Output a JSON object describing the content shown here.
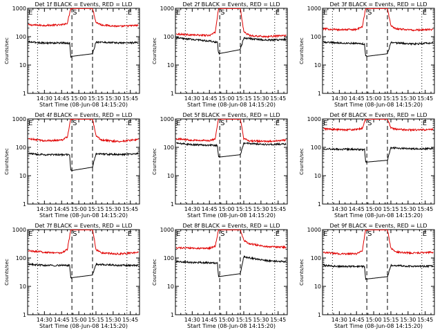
{
  "figure": {
    "background": "#ffffff",
    "axis_color": "#000000",
    "events_color": "#000000",
    "lld_color": "#e00000"
  },
  "chart_data": [
    {
      "type": "line",
      "title": "Det 1f BLACK = Events, RED = LLD",
      "xlabel": "Start Time (08-Jun-08 14:15:20)",
      "ylabel": "Counts/sec",
      "y_scale": "log",
      "ylim": [
        1,
        1000
      ],
      "y_ticks": [
        "1",
        "10",
        "100",
        "1000"
      ],
      "xlim": [
        "14:15:20",
        "15:53:00"
      ],
      "x_ticks": [
        "14:30",
        "14:45",
        "15:00",
        "15:15",
        "15:30",
        "15:45"
      ],
      "markers": [
        {
          "label": "E",
          "time": "14:15:20",
          "style": "dotted"
        },
        {
          "label": "",
          "time": "14:24:00",
          "style": "dotted"
        },
        {
          "label": "S",
          "time": "14:54:00",
          "style": "dashed"
        },
        {
          "label": "",
          "time": "15:12:00",
          "style": "dashed"
        },
        {
          "label": "E",
          "time": "15:42:00",
          "style": "dotted"
        }
      ],
      "gap": [
        "14:54:00",
        "15:12:00"
      ],
      "series": [
        {
          "name": "LLD",
          "color": "#e00000",
          "x": [
            "14:16",
            "14:30",
            "14:45",
            "14:50",
            "14:53",
            "15:12",
            "15:15",
            "15:20",
            "15:35",
            "15:52"
          ],
          "values": [
            260,
            250,
            260,
            300,
            1000,
            1000,
            320,
            260,
            230,
            250
          ]
        },
        {
          "name": "Events",
          "color": "#000000",
          "x": [
            "14:16",
            "14:30",
            "14:45",
            "14:52",
            "14:53",
            "15:12",
            "15:15",
            "15:35",
            "15:52"
          ],
          "values": [
            65,
            60,
            60,
            58,
            20,
            25,
            65,
            60,
            62
          ]
        }
      ]
    },
    {
      "type": "line",
      "title": "Det 2f BLACK = Events, RED = LLD",
      "xlabel": "Start Time (08-Jun-08 14:15:20)",
      "ylabel": "Counts/sec",
      "y_scale": "log",
      "ylim": [
        1,
        1000
      ],
      "y_ticks": [
        "1",
        "10",
        "100",
        "1000"
      ],
      "xlim": [
        "14:15:20",
        "15:53:00"
      ],
      "x_ticks": [
        "14:30",
        "14:45",
        "15:00",
        "15:15",
        "15:30",
        "15:45"
      ],
      "markers": [
        {
          "label": "E",
          "time": "14:15:20",
          "style": "dotted"
        },
        {
          "label": "",
          "time": "14:24:00",
          "style": "dotted"
        },
        {
          "label": "S",
          "time": "14:54:00",
          "style": "dashed"
        },
        {
          "label": "",
          "time": "15:12:00",
          "style": "dashed"
        },
        {
          "label": "E",
          "time": "15:42:00",
          "style": "dotted"
        }
      ],
      "gap": [
        "14:54:00",
        "15:12:00"
      ],
      "series": [
        {
          "name": "LLD",
          "color": "#e00000",
          "x": [
            "14:16",
            "14:30",
            "14:45",
            "14:50",
            "14:53",
            "15:12",
            "15:15",
            "15:20",
            "15:35",
            "15:52"
          ],
          "values": [
            125,
            115,
            110,
            140,
            1000,
            1000,
            150,
            110,
            100,
            110
          ]
        },
        {
          "name": "Events",
          "color": "#000000",
          "x": [
            "14:16",
            "14:30",
            "14:45",
            "14:52",
            "14:53",
            "15:12",
            "15:15",
            "15:35",
            "15:52"
          ],
          "values": [
            90,
            80,
            70,
            62,
            25,
            35,
            90,
            75,
            80
          ]
        }
      ]
    },
    {
      "type": "line",
      "title": "Det 3f BLACK = Events, RED = LLD",
      "xlabel": "Start Time (08-Jun-08 14:15:20)",
      "ylabel": "Counts/sec",
      "y_scale": "log",
      "ylim": [
        1,
        1000
      ],
      "y_ticks": [
        "1",
        "10",
        "100",
        "1000"
      ],
      "xlim": [
        "14:15:20",
        "15:53:00"
      ],
      "x_ticks": [
        "14:30",
        "14:45",
        "15:00",
        "15:15",
        "15:30",
        "15:45"
      ],
      "markers": [
        {
          "label": "E",
          "time": "14:15:20",
          "style": "dotted"
        },
        {
          "label": "",
          "time": "14:24:00",
          "style": "dotted"
        },
        {
          "label": "S",
          "time": "14:54:00",
          "style": "dashed"
        },
        {
          "label": "",
          "time": "15:12:00",
          "style": "dashed"
        },
        {
          "label": "E",
          "time": "15:42:00",
          "style": "dotted"
        }
      ],
      "gap": [
        "14:54:00",
        "15:12:00"
      ],
      "series": [
        {
          "name": "LLD",
          "color": "#e00000",
          "x": [
            "14:16",
            "14:30",
            "14:45",
            "14:50",
            "14:53",
            "15:12",
            "15:15",
            "15:20",
            "15:35",
            "15:52"
          ],
          "values": [
            190,
            175,
            180,
            220,
            1000,
            1000,
            240,
            190,
            170,
            180
          ]
        },
        {
          "name": "Events",
          "color": "#000000",
          "x": [
            "14:16",
            "14:30",
            "14:45",
            "14:52",
            "14:53",
            "15:12",
            "15:15",
            "15:35",
            "15:52"
          ],
          "values": [
            65,
            60,
            58,
            55,
            20,
            25,
            62,
            55,
            60
          ]
        }
      ]
    },
    {
      "type": "line",
      "title": "Det 4f BLACK = Events, RED = LLD",
      "xlabel": "Start Time (08-Jun-08 14:15:20)",
      "ylabel": "Counts/sec",
      "y_scale": "log",
      "ylim": [
        1,
        1000
      ],
      "y_ticks": [
        "1",
        "10",
        "100",
        "1000"
      ],
      "xlim": [
        "14:15:20",
        "15:53:00"
      ],
      "x_ticks": [
        "14:30",
        "14:45",
        "15:00",
        "15:15",
        "15:30",
        "15:45"
      ],
      "markers": [
        {
          "label": "E",
          "time": "14:15:20",
          "style": "dotted"
        },
        {
          "label": "",
          "time": "14:24:00",
          "style": "dotted"
        },
        {
          "label": "S",
          "time": "14:54:00",
          "style": "dashed"
        },
        {
          "label": "",
          "time": "15:12:00",
          "style": "dashed"
        },
        {
          "label": "E",
          "time": "15:42:00",
          "style": "dotted"
        }
      ],
      "gap": [
        "14:54:00",
        "15:12:00"
      ],
      "series": [
        {
          "name": "LLD",
          "color": "#e00000",
          "x": [
            "14:16",
            "14:30",
            "14:45",
            "14:50",
            "14:53",
            "15:12",
            "15:15",
            "15:20",
            "15:35",
            "15:52"
          ],
          "values": [
            200,
            170,
            180,
            230,
            1000,
            1000,
            250,
            180,
            160,
            190
          ]
        },
        {
          "name": "Events",
          "color": "#000000",
          "x": [
            "14:16",
            "14:30",
            "14:45",
            "14:52",
            "14:53",
            "15:12",
            "15:15",
            "15:35",
            "15:52"
          ],
          "values": [
            60,
            55,
            55,
            55,
            15,
            20,
            60,
            55,
            60
          ]
        }
      ]
    },
    {
      "type": "line",
      "title": "Det 5f BLACK = Events, RED = LLD",
      "xlabel": "Start Time (08-Jun-08 14:15:20)",
      "ylabel": "Counts/sec",
      "y_scale": "log",
      "ylim": [
        1,
        1000
      ],
      "y_ticks": [
        "1",
        "10",
        "100",
        "1000"
      ],
      "xlim": [
        "14:15:20",
        "15:53:00"
      ],
      "x_ticks": [
        "14:30",
        "14:45",
        "15:00",
        "15:15",
        "15:30",
        "15:45"
      ],
      "markers": [
        {
          "label": "E",
          "time": "14:15:20",
          "style": "dotted"
        },
        {
          "label": "",
          "time": "14:24:00",
          "style": "dotted"
        },
        {
          "label": "S",
          "time": "14:54:00",
          "style": "dashed"
        },
        {
          "label": "",
          "time": "15:12:00",
          "style": "dashed"
        },
        {
          "label": "E",
          "time": "15:42:00",
          "style": "dotted"
        }
      ],
      "gap": [
        "14:54:00",
        "15:12:00"
      ],
      "series": [
        {
          "name": "LLD",
          "color": "#e00000",
          "x": [
            "14:16",
            "14:30",
            "14:45",
            "14:50",
            "14:53",
            "15:12",
            "15:15",
            "15:20",
            "15:35",
            "15:52"
          ],
          "values": [
            200,
            180,
            170,
            200,
            1000,
            1000,
            200,
            170,
            160,
            180
          ]
        },
        {
          "name": "Events",
          "color": "#000000",
          "x": [
            "14:16",
            "14:30",
            "14:45",
            "14:52",
            "14:53",
            "15:12",
            "15:15",
            "15:35",
            "15:52"
          ],
          "values": [
            140,
            125,
            120,
            115,
            45,
            55,
            140,
            125,
            130
          ]
        }
      ]
    },
    {
      "type": "line",
      "title": "Det 6f BLACK = Events, RED = LLD",
      "xlabel": "Start Time (08-Jun-08 14:15:20)",
      "ylabel": "Counts/sec",
      "y_scale": "log",
      "ylim": [
        1,
        1000
      ],
      "y_ticks": [
        "1",
        "10",
        "100",
        "1000"
      ],
      "xlim": [
        "14:15:20",
        "15:53:00"
      ],
      "x_ticks": [
        "14:30",
        "14:45",
        "15:00",
        "15:15",
        "15:30",
        "15:45"
      ],
      "markers": [
        {
          "label": "E",
          "time": "14:15:20",
          "style": "dotted"
        },
        {
          "label": "",
          "time": "14:24:00",
          "style": "dotted"
        },
        {
          "label": "S",
          "time": "14:54:00",
          "style": "dashed"
        },
        {
          "label": "",
          "time": "15:12:00",
          "style": "dashed"
        },
        {
          "label": "E",
          "time": "15:42:00",
          "style": "dotted"
        }
      ],
      "gap": [
        "14:54:00",
        "15:12:00"
      ],
      "series": [
        {
          "name": "LLD",
          "color": "#e00000",
          "x": [
            "14:16",
            "14:30",
            "14:45",
            "14:50",
            "14:53",
            "15:12",
            "15:15",
            "15:20",
            "15:35",
            "15:52"
          ],
          "values": [
            450,
            420,
            420,
            470,
            1000,
            1000,
            480,
            430,
            410,
            420
          ]
        },
        {
          "name": "Events",
          "color": "#000000",
          "x": [
            "14:16",
            "14:30",
            "14:45",
            "14:52",
            "14:53",
            "15:12",
            "15:15",
            "15:35",
            "15:52"
          ],
          "values": [
            90,
            85,
            85,
            82,
            30,
            35,
            95,
            88,
            90
          ]
        }
      ]
    },
    {
      "type": "line",
      "title": "Det 7f BLACK = Events, RED = LLD",
      "xlabel": "Start Time (08-Jun-08 14:15:20)",
      "ylabel": "Counts/sec",
      "y_scale": "log",
      "ylim": [
        1,
        1000
      ],
      "y_ticks": [
        "1",
        "10",
        "100",
        "1000"
      ],
      "xlim": [
        "14:15:20",
        "15:53:00"
      ],
      "x_ticks": [
        "14:30",
        "14:45",
        "15:00",
        "15:15",
        "15:30",
        "15:45"
      ],
      "markers": [
        {
          "label": "E",
          "time": "14:15:20",
          "style": "dotted"
        },
        {
          "label": "",
          "time": "14:24:00",
          "style": "dotted"
        },
        {
          "label": "S",
          "time": "14:54:00",
          "style": "dashed"
        },
        {
          "label": "",
          "time": "15:12:00",
          "style": "dashed"
        },
        {
          "label": "E",
          "time": "15:42:00",
          "style": "dotted"
        }
      ],
      "gap": [
        "14:54:00",
        "15:12:00"
      ],
      "series": [
        {
          "name": "LLD",
          "color": "#e00000",
          "x": [
            "14:16",
            "14:30",
            "14:45",
            "14:50",
            "14:53",
            "15:12",
            "15:15",
            "15:20",
            "15:35",
            "15:52"
          ],
          "values": [
            180,
            160,
            150,
            200,
            1000,
            1000,
            200,
            150,
            140,
            155
          ]
        },
        {
          "name": "Events",
          "color": "#000000",
          "x": [
            "14:16",
            "14:30",
            "14:45",
            "14:52",
            "14:53",
            "15:12",
            "15:15",
            "15:35",
            "15:52"
          ],
          "values": [
            60,
            55,
            55,
            55,
            20,
            25,
            60,
            55,
            55
          ]
        }
      ]
    },
    {
      "type": "line",
      "title": "Det 8f BLACK = Events, RED = LLD",
      "xlabel": "Start Time (08-Jun-08 14:15:20)",
      "ylabel": "Counts/sec",
      "y_scale": "log",
      "ylim": [
        1,
        1000
      ],
      "y_ticks": [
        "1",
        "10",
        "100",
        "1000"
      ],
      "xlim": [
        "14:15:20",
        "15:53:00"
      ],
      "x_ticks": [
        "14:30",
        "14:45",
        "15:00",
        "15:15",
        "15:30",
        "15:45"
      ],
      "markers": [
        {
          "label": "E",
          "time": "14:15:20",
          "style": "dotted"
        },
        {
          "label": "",
          "time": "14:24:00",
          "style": "dotted"
        },
        {
          "label": "S",
          "time": "14:54:00",
          "style": "dashed"
        },
        {
          "label": "",
          "time": "15:12:00",
          "style": "dashed"
        },
        {
          "label": "E",
          "time": "15:42:00",
          "style": "dotted"
        }
      ],
      "gap": [
        "14:54:00",
        "15:12:00"
      ],
      "series": [
        {
          "name": "LLD",
          "color": "#e00000",
          "x": [
            "14:16",
            "14:30",
            "14:45",
            "14:50",
            "14:53",
            "15:12",
            "15:15",
            "15:20",
            "15:35",
            "15:52"
          ],
          "values": [
            230,
            220,
            220,
            260,
            1000,
            1000,
            420,
            320,
            250,
            240
          ]
        },
        {
          "name": "Events",
          "color": "#000000",
          "x": [
            "14:16",
            "14:30",
            "14:45",
            "14:52",
            "14:53",
            "15:12",
            "15:15",
            "15:35",
            "15:52"
          ],
          "values": [
            75,
            70,
            68,
            65,
            22,
            28,
            110,
            80,
            75
          ]
        }
      ]
    },
    {
      "type": "line",
      "title": "Det 9f BLACK = Events, RED = LLD",
      "xlabel": "Start Time (08-Jun-08 14:15:20)",
      "ylabel": "Counts/sec",
      "y_scale": "log",
      "ylim": [
        1,
        1000
      ],
      "y_ticks": [
        "1",
        "10",
        "100",
        "1000"
      ],
      "xlim": [
        "14:15:20",
        "15:53:00"
      ],
      "x_ticks": [
        "14:30",
        "14:45",
        "15:00",
        "15:15",
        "15:30",
        "15:45"
      ],
      "markers": [
        {
          "label": "E",
          "time": "14:15:20",
          "style": "dotted"
        },
        {
          "label": "",
          "time": "14:24:00",
          "style": "dotted"
        },
        {
          "label": "S",
          "time": "14:54:00",
          "style": "dashed"
        },
        {
          "label": "",
          "time": "15:12:00",
          "style": "dashed"
        },
        {
          "label": "E",
          "time": "15:42:00",
          "style": "dotted"
        }
      ],
      "gap": [
        "14:54:00",
        "15:12:00"
      ],
      "series": [
        {
          "name": "LLD",
          "color": "#e00000",
          "x": [
            "14:16",
            "14:30",
            "14:45",
            "14:50",
            "14:53",
            "15:12",
            "15:15",
            "15:20",
            "15:35",
            "15:52"
          ],
          "values": [
            160,
            140,
            140,
            180,
            1000,
            1000,
            220,
            160,
            150,
            160
          ]
        },
        {
          "name": "Events",
          "color": "#000000",
          "x": [
            "14:16",
            "14:30",
            "14:45",
            "14:52",
            "14:53",
            "15:12",
            "15:15",
            "15:35",
            "15:52"
          ],
          "values": [
            55,
            50,
            50,
            50,
            18,
            22,
            55,
            50,
            52
          ]
        }
      ]
    }
  ]
}
